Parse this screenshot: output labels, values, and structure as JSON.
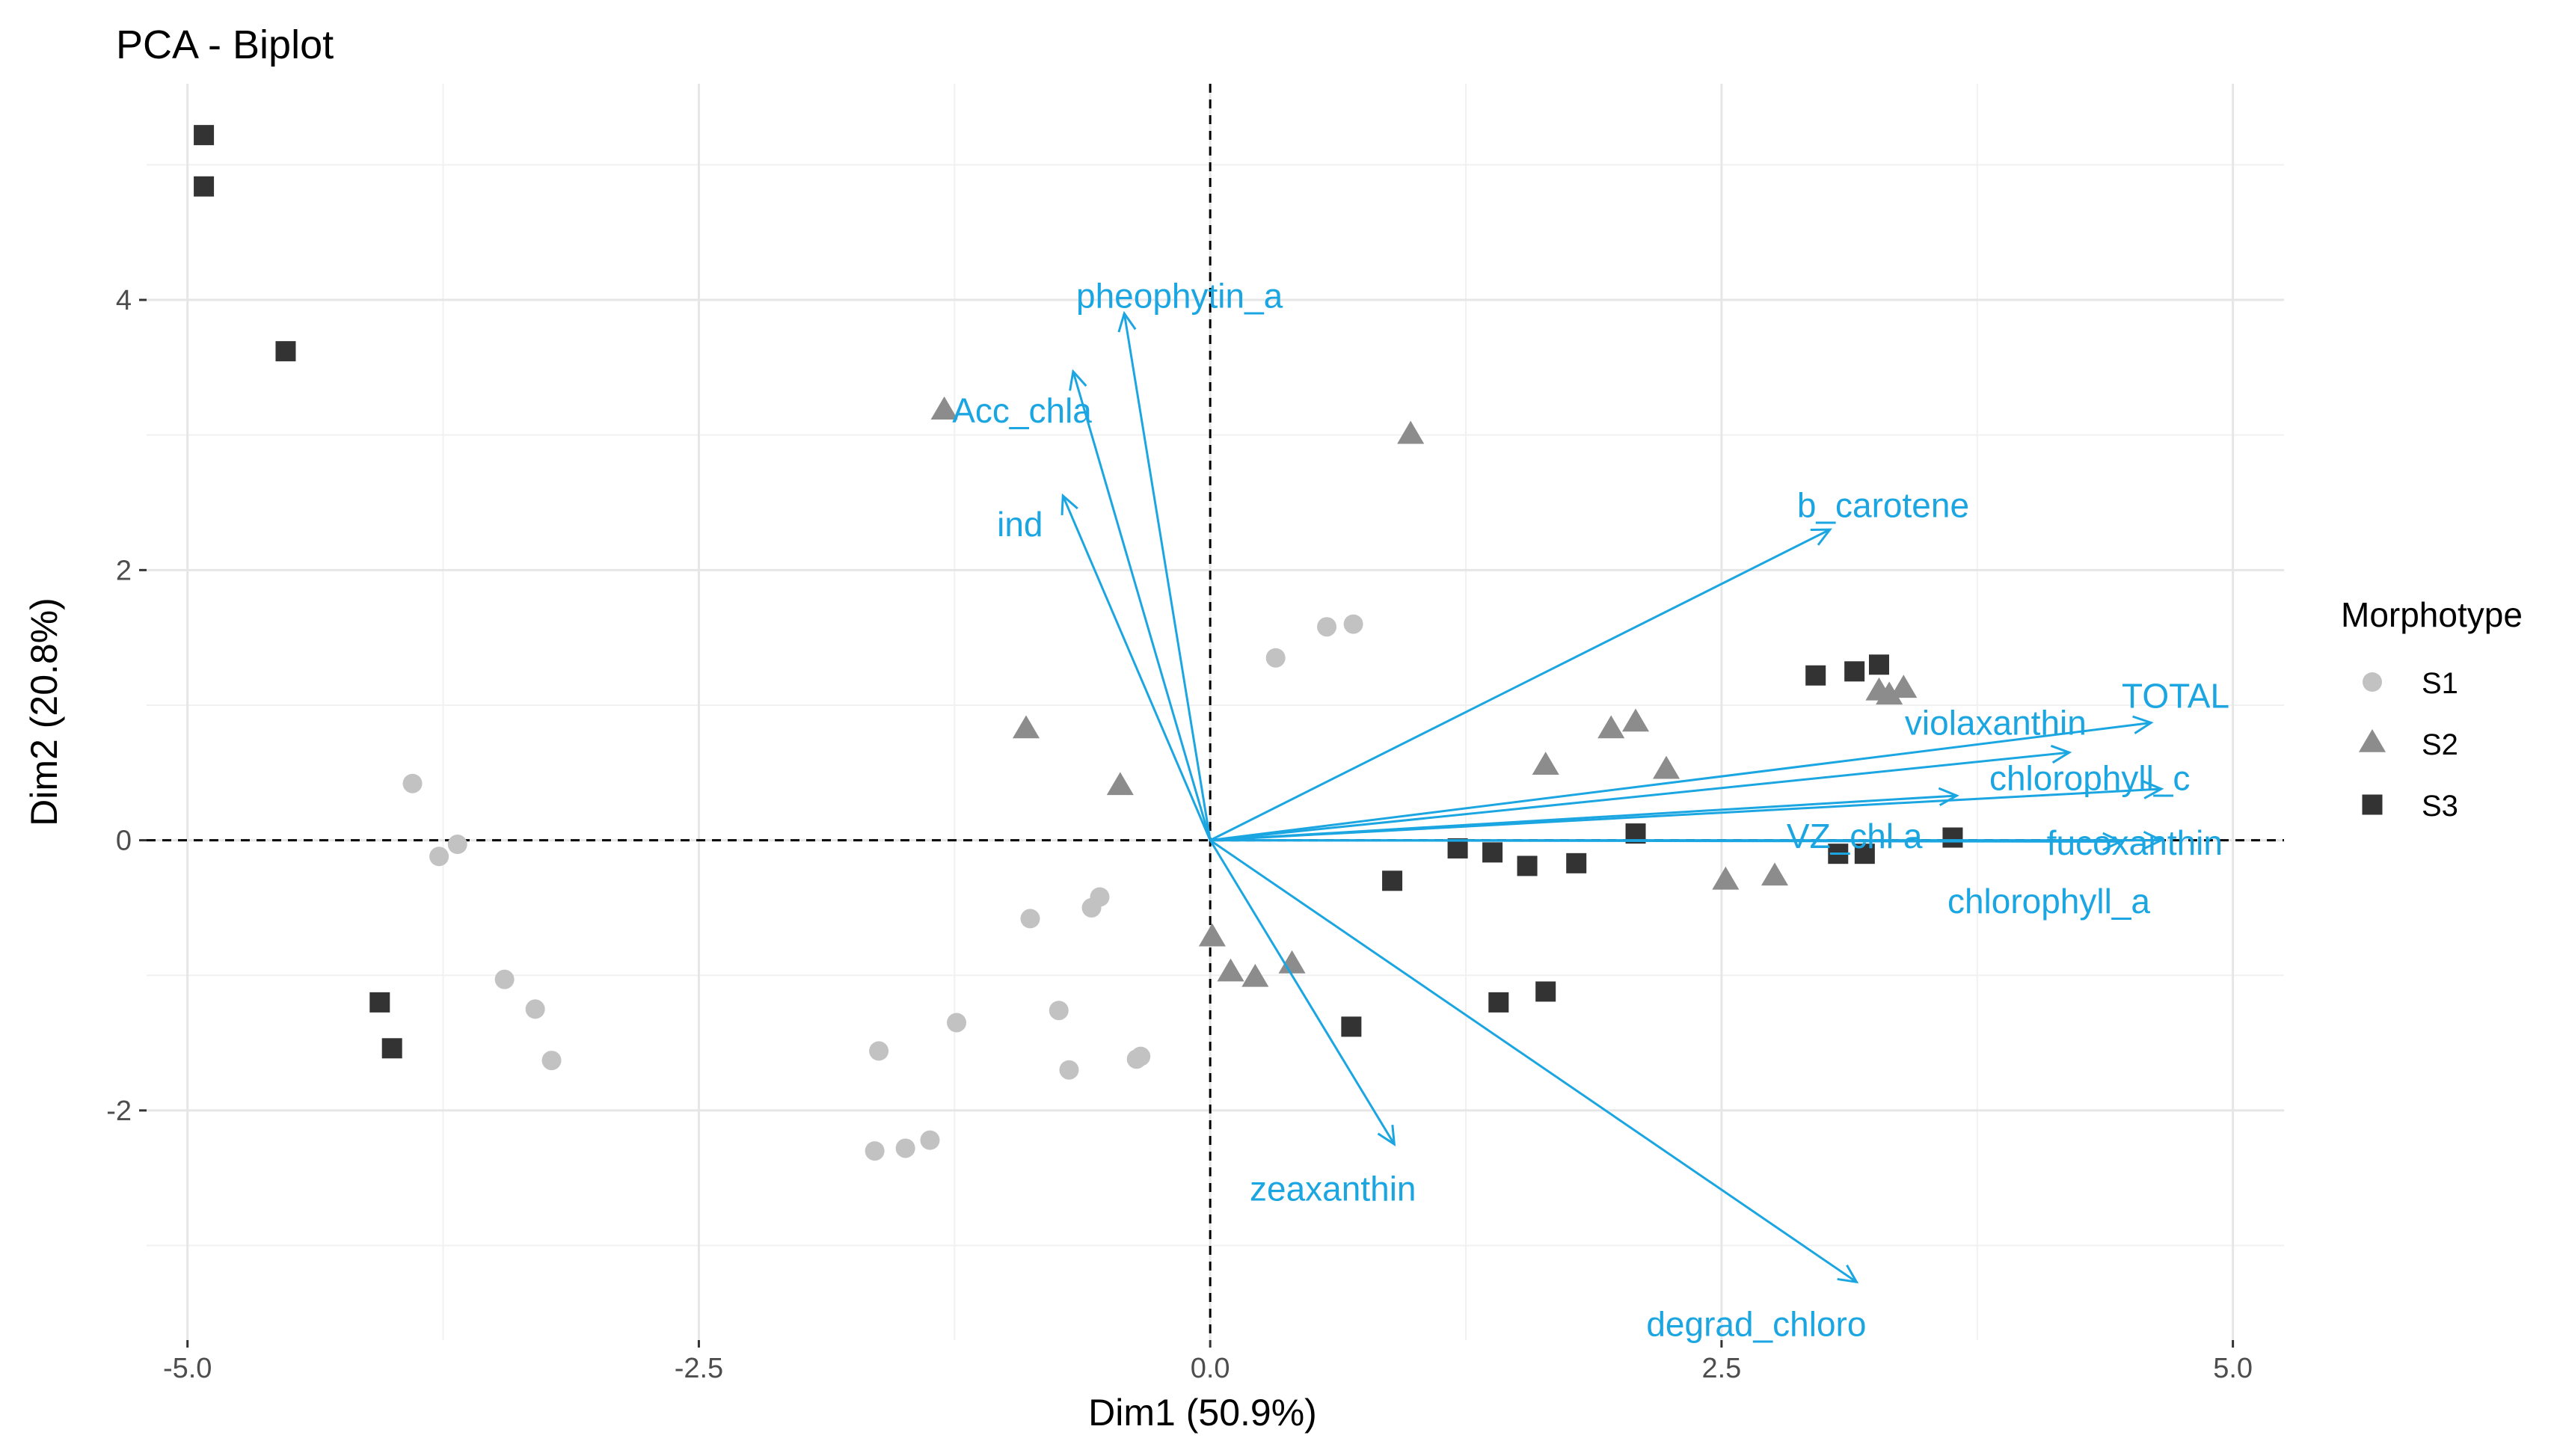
{
  "chart_data": {
    "type": "scatter",
    "title": "PCA - Biplot",
    "xlabel": "Dim1 (50.9%)",
    "ylabel": "Dim2 (20.8%)",
    "xlim": [
      -5.2,
      5.25
    ],
    "ylim": [
      -3.7,
      5.6
    ],
    "x_ticks": [
      -5.0,
      -2.5,
      0.0,
      2.5,
      5.0
    ],
    "x_tick_labels": [
      "-5.0",
      "-2.5",
      "0.0",
      "2.5",
      "5.0"
    ],
    "y_ticks": [
      -2,
      0,
      2,
      4
    ],
    "y_tick_labels": [
      "-2",
      "0",
      "2",
      "4"
    ],
    "grid": true,
    "legend": {
      "title": "Morphotype",
      "position": "right",
      "entries": [
        {
          "label": "S1",
          "shape": "circle",
          "color": "#c2c2c2"
        },
        {
          "label": "S2",
          "shape": "triangle",
          "color": "#8c8c8c"
        },
        {
          "label": "S3",
          "shape": "square",
          "color": "#333333"
        }
      ]
    },
    "arrow_color": "#1ba6e2",
    "series": [
      {
        "name": "S1",
        "points": [
          [
            -3.9,
            0.42
          ],
          [
            -3.77,
            -0.12
          ],
          [
            -3.68,
            -0.03
          ],
          [
            -3.45,
            -1.03
          ],
          [
            -3.3,
            -1.25
          ],
          [
            -3.22,
            -1.63
          ],
          [
            -1.62,
            -1.56
          ],
          [
            -1.64,
            -2.3
          ],
          [
            -1.49,
            -2.28
          ],
          [
            -1.37,
            -2.22
          ],
          [
            -1.24,
            -1.35
          ],
          [
            -0.88,
            -0.58
          ],
          [
            -0.74,
            -1.26
          ],
          [
            -0.69,
            -1.7
          ],
          [
            -0.58,
            -0.5
          ],
          [
            -0.54,
            -0.42
          ],
          [
            -0.36,
            -1.62
          ],
          [
            -0.34,
            -1.6
          ],
          [
            0.32,
            1.35
          ],
          [
            0.57,
            1.58
          ],
          [
            0.7,
            1.6
          ]
        ]
      },
      {
        "name": "S2",
        "points": [
          [
            -1.3,
            3.18
          ],
          [
            -0.9,
            0.82
          ],
          [
            -0.44,
            0.4
          ],
          [
            0.01,
            -0.72
          ],
          [
            0.1,
            -0.98
          ],
          [
            0.22,
            -1.02
          ],
          [
            0.4,
            -0.92
          ],
          [
            0.98,
            3.0
          ],
          [
            1.64,
            0.55
          ],
          [
            1.96,
            0.82
          ],
          [
            2.08,
            0.87
          ],
          [
            2.23,
            0.52
          ],
          [
            2.52,
            -0.3
          ],
          [
            2.76,
            -0.27
          ],
          [
            3.27,
            1.1
          ],
          [
            3.32,
            1.07
          ],
          [
            3.39,
            1.12
          ]
        ]
      },
      {
        "name": "S3",
        "points": [
          [
            -4.92,
            5.22
          ],
          [
            -4.92,
            4.84
          ],
          [
            -4.52,
            3.62
          ],
          [
            -4.06,
            -1.2
          ],
          [
            -4.0,
            -1.54
          ],
          [
            0.69,
            -1.38
          ],
          [
            0.89,
            -0.3
          ],
          [
            1.21,
            -0.06
          ],
          [
            1.38,
            -0.09
          ],
          [
            1.41,
            -1.2
          ],
          [
            1.55,
            -0.19
          ],
          [
            1.64,
            -1.12
          ],
          [
            1.79,
            -0.17
          ],
          [
            2.08,
            0.05
          ],
          [
            2.96,
            1.22
          ],
          [
            3.07,
            -0.1
          ],
          [
            3.15,
            1.25
          ],
          [
            3.2,
            -0.1
          ],
          [
            3.27,
            1.3
          ],
          [
            3.63,
            0.02
          ]
        ]
      }
    ],
    "variables": [
      {
        "name": "pheophytin_a",
        "x": -0.42,
        "y": 3.9,
        "label_x": -0.15,
        "label_y": 4.03
      },
      {
        "name": "Acc_chla",
        "x": -0.67,
        "y": 3.47,
        "label_x": -0.92,
        "label_y": 3.18
      },
      {
        "name": "ind",
        "x": -0.72,
        "y": 2.55,
        "label_x": -0.93,
        "label_y": 2.34
      },
      {
        "name": "b_carotene",
        "x": 3.03,
        "y": 2.3,
        "label_x": 3.29,
        "label_y": 2.48
      },
      {
        "name": "TOTAL",
        "x": 4.6,
        "y": 0.87,
        "label_x": 4.72,
        "label_y": 1.07
      },
      {
        "name": "violaxanthin",
        "x": 4.2,
        "y": 0.65,
        "label_x": 3.84,
        "label_y": 0.87
      },
      {
        "name": "chlorophyll_c",
        "x": 4.65,
        "y": 0.38,
        "label_x": 4.3,
        "label_y": 0.46
      },
      {
        "name": "VZ_chl a",
        "x": 3.65,
        "y": 0.33,
        "label_x": 3.15,
        "label_y": 0.03
      },
      {
        "name": "fucoxanthin",
        "x": 4.65,
        "y": 0.0,
        "label_x": 4.52,
        "label_y": -0.02
      },
      {
        "name": "chlorophyll_a",
        "x": 4.45,
        "y": -0.01,
        "label_x": 4.1,
        "label_y": -0.45
      },
      {
        "name": "zeaxanthin",
        "x": 0.9,
        "y": -2.25,
        "label_x": 0.6,
        "label_y": -2.58
      },
      {
        "name": "degrad_chloro",
        "x": 3.16,
        "y": -3.27,
        "label_x": 2.67,
        "label_y": -3.58
      }
    ]
  }
}
